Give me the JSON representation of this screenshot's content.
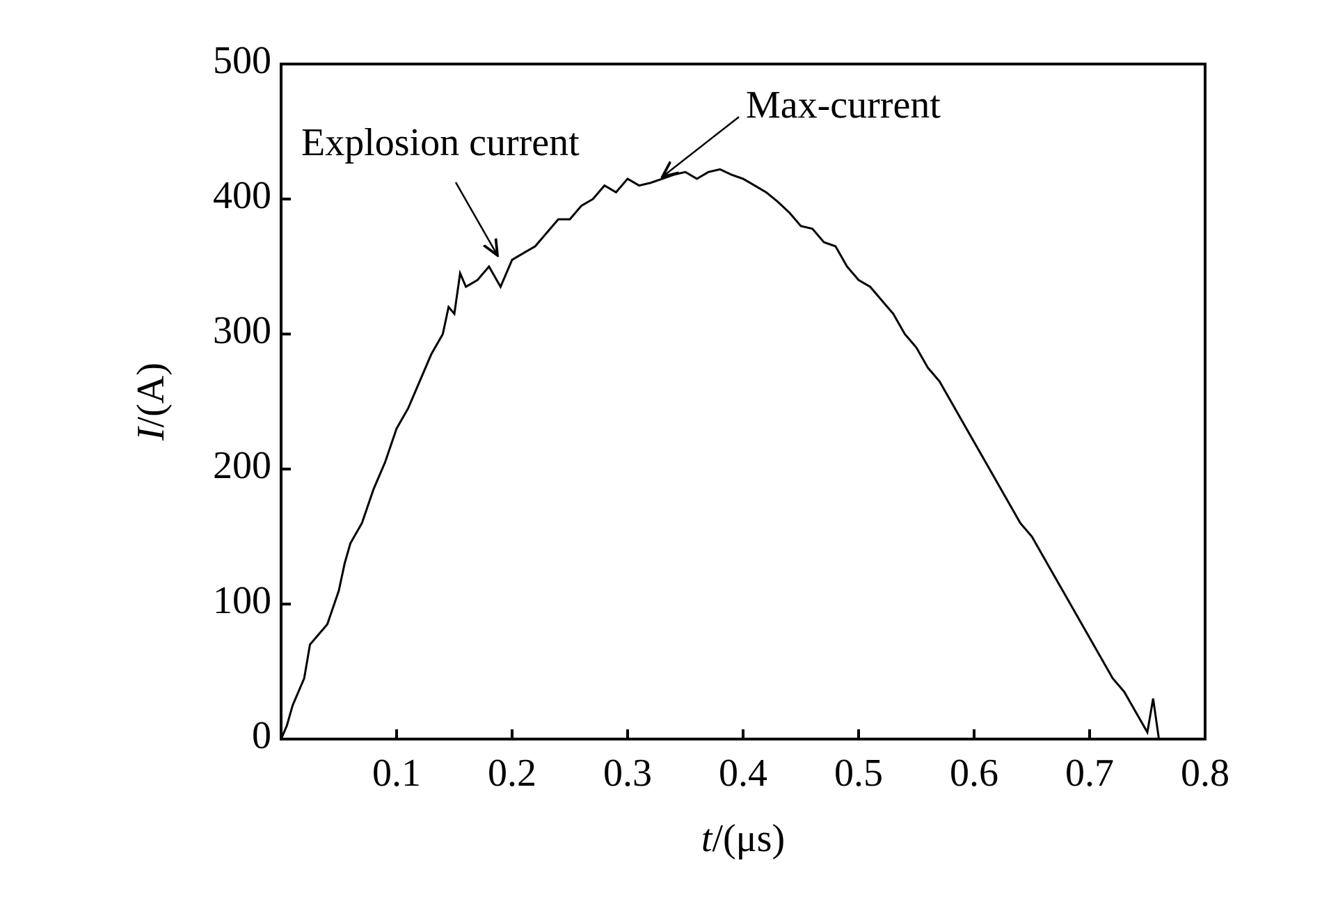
{
  "chart_data": {
    "type": "line",
    "y_label": {
      "symbol": "I",
      "unit": "/(A)"
    },
    "x_label": {
      "symbol": "t",
      "unit": "/(μs)"
    },
    "annotations": [
      "Explosion current",
      "Max-current"
    ],
    "xlim": [
      0,
      0.8
    ],
    "xticks": [
      0.1,
      0.2,
      0.3,
      0.4,
      0.5,
      0.6,
      0.7,
      0.8
    ],
    "ylim": [
      0,
      500
    ],
    "yticks": [
      0,
      100,
      200,
      300,
      400,
      500
    ],
    "color": "#000000",
    "x": [
      0,
      0.005,
      0.01,
      0.02,
      0.025,
      0.03,
      0.04,
      0.05,
      0.055,
      0.06,
      0.07,
      0.08,
      0.09,
      0.1,
      0.11,
      0.12,
      0.13,
      0.14,
      0.145,
      0.15,
      0.155,
      0.16,
      0.17,
      0.18,
      0.19,
      0.2,
      0.21,
      0.22,
      0.23,
      0.24,
      0.25,
      0.26,
      0.27,
      0.28,
      0.29,
      0.3,
      0.31,
      0.32,
      0.33,
      0.34,
      0.35,
      0.36,
      0.37,
      0.38,
      0.39,
      0.4,
      0.41,
      0.42,
      0.43,
      0.44,
      0.45,
      0.46,
      0.47,
      0.48,
      0.49,
      0.5,
      0.51,
      0.52,
      0.53,
      0.54,
      0.55,
      0.56,
      0.57,
      0.58,
      0.59,
      0.6,
      0.61,
      0.62,
      0.63,
      0.64,
      0.65,
      0.66,
      0.67,
      0.68,
      0.69,
      0.7,
      0.71,
      0.72,
      0.73,
      0.74,
      0.75,
      0.755,
      0.76
    ],
    "values": [
      0,
      10,
      25,
      45,
      70,
      75,
      85,
      110,
      130,
      145,
      160,
      185,
      205,
      230,
      245,
      265,
      285,
      300,
      320,
      315,
      345,
      335,
      340,
      350,
      335,
      355,
      360,
      365,
      375,
      385,
      385,
      395,
      400,
      410,
      405,
      415,
      410,
      412,
      415,
      418,
      420,
      415,
      420,
      422,
      418,
      415,
      410,
      405,
      398,
      390,
      380,
      378,
      368,
      365,
      350,
      340,
      335,
      325,
      315,
      300,
      290,
      275,
      265,
      250,
      235,
      220,
      205,
      190,
      175,
      160,
      150,
      135,
      120,
      105,
      90,
      75,
      60,
      45,
      35,
      20,
      5,
      30,
      0
    ]
  }
}
